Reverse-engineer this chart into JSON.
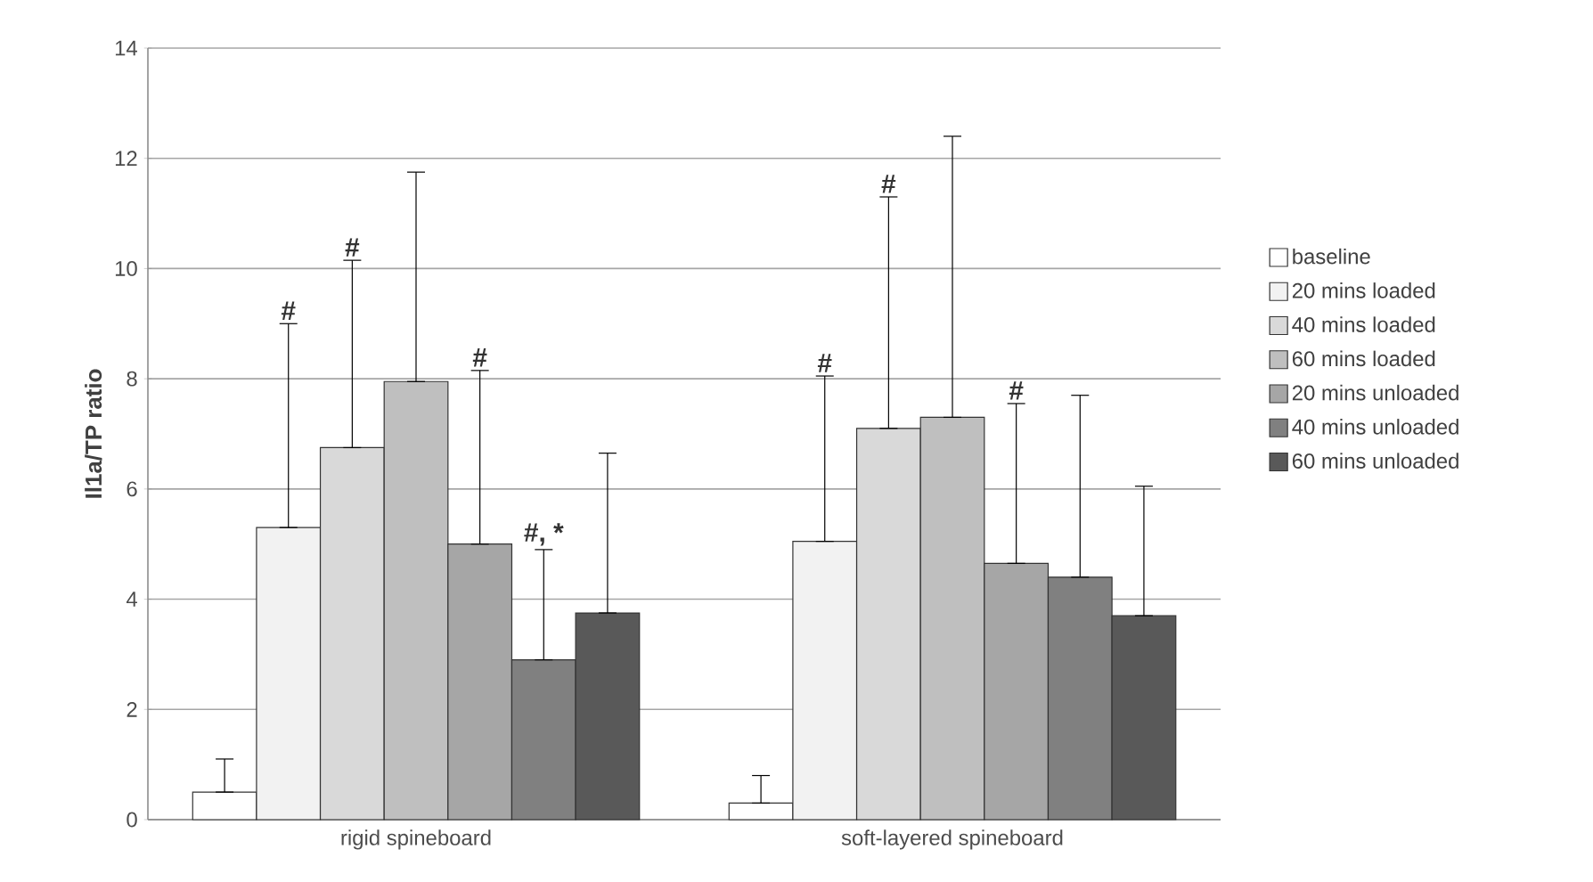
{
  "chart_data": {
    "type": "bar",
    "ylabel": "Il1a/TP ratio",
    "categories": [
      "rigid spineboard",
      "soft-layered spineboard"
    ],
    "series": [
      {
        "name": "baseline",
        "color": "#ffffff",
        "values": [
          0.5,
          0.3
        ],
        "errors": [
          [
            0.5,
            1.1
          ],
          [
            0.3,
            0.8
          ]
        ]
      },
      {
        "name": "20 mins loaded",
        "color": "#f2f2f2",
        "values": [
          5.3,
          5.05
        ],
        "errors": [
          [
            5.3,
            9.0
          ],
          [
            5.05,
            8.05
          ]
        ]
      },
      {
        "name": "40 mins loaded",
        "color": "#d9d9d9",
        "values": [
          6.75,
          7.1
        ],
        "errors": [
          [
            6.75,
            10.15
          ],
          [
            7.1,
            11.3
          ]
        ]
      },
      {
        "name": "60 mins loaded",
        "color": "#bfbfbf",
        "values": [
          7.95,
          7.3
        ],
        "errors": [
          [
            7.95,
            11.75
          ],
          [
            7.3,
            12.4
          ]
        ]
      },
      {
        "name": "20 mins unloaded",
        "color": "#a6a6a6",
        "values": [
          5.0,
          4.65
        ],
        "errors": [
          [
            5.0,
            8.15
          ],
          [
            4.65,
            7.55
          ]
        ]
      },
      {
        "name": "40 mins unloaded",
        "color": "#808080",
        "values": [
          2.9,
          4.4
        ],
        "errors": [
          [
            2.9,
            4.9
          ],
          [
            4.4,
            7.7
          ]
        ]
      },
      {
        "name": "60 mins unloaded",
        "color": "#595959",
        "values": [
          3.75,
          3.7
        ],
        "errors": [
          [
            3.75,
            6.65
          ],
          [
            3.7,
            6.05
          ]
        ]
      }
    ],
    "annotations": [
      "#",
      "#",
      "#",
      "#, *",
      "#",
      "#",
      "#"
    ],
    "ylim": [
      0,
      14
    ],
    "yticks": [
      0,
      2,
      4,
      6,
      8,
      10,
      12,
      14
    ],
    "grid": "y",
    "legend": "right"
  }
}
